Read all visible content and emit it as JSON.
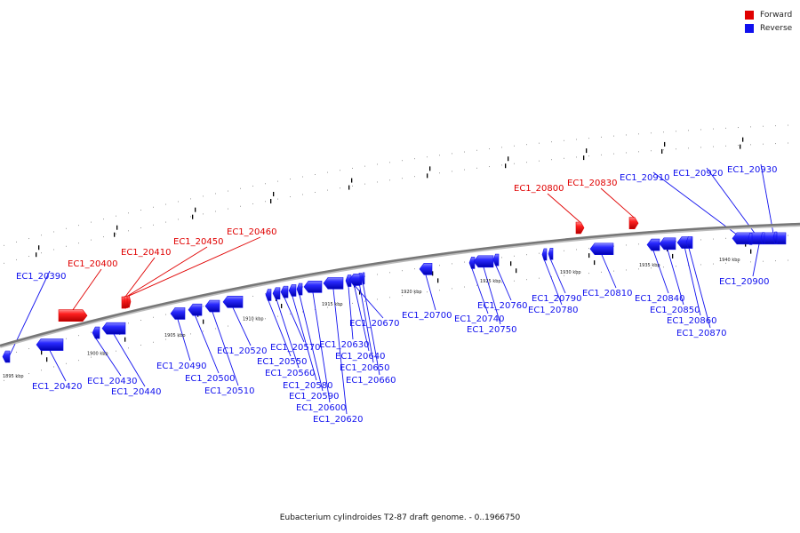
{
  "legend": [
    {
      "label": "Forward",
      "color": "#e00000"
    },
    {
      "label": "Reverse",
      "color": "#1010ee"
    }
  ],
  "caption": "Eubacterium cylindroides T2-87 draft genome. - 0..1966750",
  "colors": {
    "backbone": "#777777",
    "forward": "#e00000",
    "reverse": "#1010ee"
  },
  "scale": [
    {
      "label": "1895 kbp",
      "kbp": 1895
    },
    {
      "label": "1900 kbp",
      "kbp": 1900
    },
    {
      "label": "1905 kbp",
      "kbp": 1905
    },
    {
      "label": "1910 kbp",
      "kbp": 1910
    },
    {
      "label": "1915 kbp",
      "kbp": 1915
    },
    {
      "label": "1920 kbp",
      "kbp": 1920
    },
    {
      "label": "1925 kbp",
      "kbp": 1925
    },
    {
      "label": "1930 kbp",
      "kbp": 1930
    },
    {
      "label": "1935 kbp",
      "kbp": 1935
    },
    {
      "label": "1940 kbp",
      "kbp": 1940
    }
  ],
  "genes": [
    {
      "id": "EC1_20390",
      "strand": "reverse"
    },
    {
      "id": "EC1_20400",
      "strand": "forward"
    },
    {
      "id": "EC1_20410",
      "strand": "forward"
    },
    {
      "id": "EC1_20420",
      "strand": "reverse"
    },
    {
      "id": "EC1_20430",
      "strand": "reverse"
    },
    {
      "id": "EC1_20440",
      "strand": "reverse"
    },
    {
      "id": "EC1_20450",
      "strand": "forward"
    },
    {
      "id": "EC1_20460",
      "strand": "forward"
    },
    {
      "id": "EC1_20490",
      "strand": "reverse"
    },
    {
      "id": "EC1_20500",
      "strand": "reverse"
    },
    {
      "id": "EC1_20510",
      "strand": "reverse"
    },
    {
      "id": "EC1_20520",
      "strand": "reverse"
    },
    {
      "id": "EC1_20550",
      "strand": "reverse"
    },
    {
      "id": "EC1_20560",
      "strand": "reverse"
    },
    {
      "id": "EC1_20570",
      "strand": "reverse"
    },
    {
      "id": "EC1_20580",
      "strand": "reverse"
    },
    {
      "id": "EC1_20590",
      "strand": "reverse"
    },
    {
      "id": "EC1_20600",
      "strand": "reverse"
    },
    {
      "id": "EC1_20620",
      "strand": "reverse"
    },
    {
      "id": "EC1_20630",
      "strand": "reverse"
    },
    {
      "id": "EC1_20640",
      "strand": "reverse"
    },
    {
      "id": "EC1_20650",
      "strand": "reverse"
    },
    {
      "id": "EC1_20660",
      "strand": "reverse"
    },
    {
      "id": "EC1_20670",
      "strand": "reverse"
    },
    {
      "id": "EC1_20700",
      "strand": "reverse"
    },
    {
      "id": "EC1_20740",
      "strand": "reverse"
    },
    {
      "id": "EC1_20750",
      "strand": "reverse"
    },
    {
      "id": "EC1_20760",
      "strand": "reverse"
    },
    {
      "id": "EC1_20780",
      "strand": "reverse"
    },
    {
      "id": "EC1_20790",
      "strand": "reverse"
    },
    {
      "id": "EC1_20800",
      "strand": "forward"
    },
    {
      "id": "EC1_20810",
      "strand": "reverse"
    },
    {
      "id": "EC1_20830",
      "strand": "forward"
    },
    {
      "id": "EC1_20840",
      "strand": "reverse"
    },
    {
      "id": "EC1_20850",
      "strand": "reverse"
    },
    {
      "id": "EC1_20860",
      "strand": "reverse"
    },
    {
      "id": "EC1_20870",
      "strand": "reverse"
    },
    {
      "id": "EC1_20900",
      "strand": "reverse"
    },
    {
      "id": "EC1_20910",
      "strand": "reverse"
    },
    {
      "id": "EC1_20920",
      "strand": "reverse"
    },
    {
      "id": "EC1_20930",
      "strand": "reverse"
    }
  ]
}
